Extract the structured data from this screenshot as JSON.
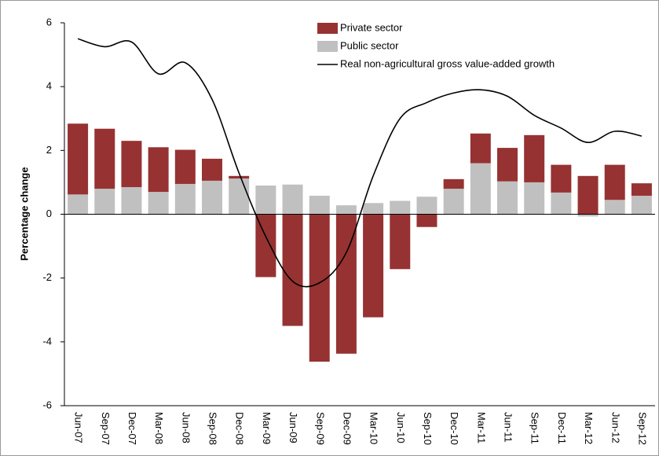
{
  "chart_data": {
    "type": "bar",
    "y_label": "Percentage change",
    "categories": [
      "Jun-07",
      "Sep-07",
      "Dec-07",
      "Mar-08",
      "Jun-08",
      "Sep-08",
      "Dec-08",
      "Mar-09",
      "Jun-09",
      "Sep-09",
      "Dec-09",
      "Mar-10",
      "Jun-10",
      "Sep-10",
      "Dec-10",
      "Mar-11",
      "Jun-11",
      "Sep-11",
      "Dec-11",
      "Mar-12",
      "Jun-12",
      "Sep-12"
    ],
    "series": [
      {
        "name": "Private sector",
        "color": "#973232",
        "stack": true,
        "values": [
          2.22,
          1.88,
          1.45,
          1.4,
          1.07,
          0.69,
          0.08,
          -1.97,
          -3.5,
          -4.62,
          -4.37,
          -3.23,
          -1.72,
          -0.4,
          0.3,
          0.93,
          1.05,
          1.48,
          0.87,
          1.2,
          1.1,
          0.39
        ]
      },
      {
        "name": "Public sector",
        "color": "#c0c0c0",
        "stack": true,
        "values": [
          0.62,
          0.8,
          0.85,
          0.7,
          0.95,
          1.05,
          1.12,
          0.9,
          0.93,
          0.58,
          0.28,
          0.35,
          0.42,
          0.55,
          0.8,
          1.6,
          1.03,
          1.0,
          0.68,
          -0.07,
          0.45,
          0.58
        ]
      },
      {
        "name": "Real non-agricultural gross value-added growth",
        "color": "#000000",
        "type": "line",
        "values": [
          5.5,
          5.25,
          5.4,
          4.4,
          4.75,
          3.6,
          1.3,
          -0.7,
          -2.1,
          -2.15,
          -1.2,
          1.2,
          3.0,
          3.5,
          3.8,
          3.9,
          3.7,
          3.1,
          2.7,
          2.25,
          2.6,
          2.45
        ]
      }
    ],
    "ylim": [
      -6,
      6
    ],
    "yticks": [
      -6,
      -4,
      -2,
      0,
      2,
      4,
      6
    ]
  }
}
